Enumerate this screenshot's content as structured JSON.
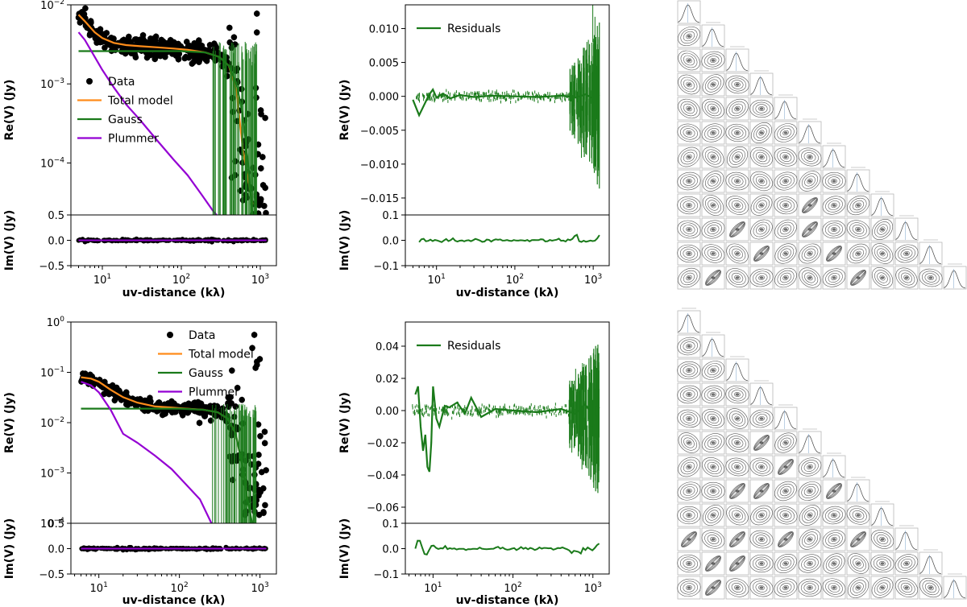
{
  "colors": {
    "data": "#000000",
    "total": "#ff8c1a",
    "gauss": "#1a7a1a",
    "plummer": "#9400d3",
    "residual": "#1a7a1a",
    "corner_line": "#b8b8b8",
    "corner_contour": "#555555"
  },
  "chart_data": [
    {
      "type": "line",
      "panel": "top-left",
      "ylabel": "Re(V) (Jy)",
      "ylabel_im": "Im(V) (Jy)",
      "xlabel": "uv-distance (kλ)",
      "xscale": "log",
      "yscale": "log",
      "xlim": [
        4,
        1600
      ],
      "ylim": [
        2.2e-05,
        0.01
      ],
      "yticks": [
        "10^-2",
        "10^-3",
        "10^-4"
      ],
      "xticks": [
        "10^1",
        "10^2",
        "10^3"
      ],
      "im_ylim": [
        -0.5,
        0.5
      ],
      "im_yticks": [
        "0.5",
        "0.0",
        "-0.5"
      ],
      "legend": [
        "Data",
        "Total model",
        "Gauss",
        "Plummer"
      ],
      "legend_position": "lower-left",
      "series": [
        {
          "name": "Total model",
          "x": [
            5,
            6,
            8,
            10,
            14,
            20,
            30,
            50,
            80,
            120,
            200,
            300,
            400,
            500,
            600,
            800
          ],
          "y": [
            0.0075,
            0.0062,
            0.0045,
            0.0038,
            0.0033,
            0.0031,
            0.003,
            0.0029,
            0.0028,
            0.0027,
            0.0025,
            0.0022,
            0.0017,
            0.0008,
            0.00015,
            3e-05
          ]
        },
        {
          "name": "Gauss",
          "x": [
            5,
            50,
            100,
            200,
            300,
            400,
            500,
            600,
            700,
            800
          ],
          "y": [
            0.0026,
            0.0026,
            0.0026,
            0.0025,
            0.0022,
            0.0017,
            0.001,
            0.0004,
            0.0001,
            2e-05
          ]
        },
        {
          "name": "Plummer",
          "x": [
            5,
            6,
            8,
            10,
            14,
            20,
            30,
            50,
            80,
            120,
            180,
            250,
            280
          ],
          "y": [
            0.0045,
            0.0036,
            0.0022,
            0.0015,
            0.0009,
            0.00055,
            0.00035,
            0.00019,
            0.00011,
            7e-05,
            4e-05,
            2.5e-05,
            2.2e-05
          ]
        }
      ]
    },
    {
      "type": "line",
      "panel": "top-middle",
      "ylabel": "Re(V) (Jy)",
      "ylabel_im": "Im(V) (Jy)",
      "xlabel": "uv-distance (kλ)",
      "xscale": "log",
      "xlim": [
        4,
        1600
      ],
      "ylim": [
        -0.0175,
        0.0135
      ],
      "yticks": [
        "0.010",
        "0.005",
        "0.000",
        "-0.005",
        "-0.010",
        "-0.015"
      ],
      "xticks": [
        "10^1",
        "10^2",
        "10^3"
      ],
      "im_ylim": [
        -0.1,
        0.1
      ],
      "im_yticks": [
        "0.1",
        "0.0",
        "-0.1"
      ],
      "legend": [
        "Residuals"
      ],
      "legend_position": "top-left",
      "series": [
        {
          "name": "Residuals",
          "x": [
            5,
            6,
            7,
            8,
            9,
            10,
            12,
            15,
            20,
            30,
            50,
            100,
            200,
            400,
            600,
            800,
            1000,
            1200
          ],
          "y": [
            -0.0005,
            -0.0028,
            -0.0012,
            0.0002,
            0.001,
            -0.0002,
            0.0004,
            -0.0003,
            0.0002,
            -0.0001,
            0.0001,
            0.0,
            -0.0001,
            0.0001,
            -0.0002,
            0.0003,
            -0.0004,
            0.0002
          ]
        }
      ]
    },
    {
      "type": "line",
      "panel": "bottom-left",
      "ylabel": "Re(V) (Jy)",
      "ylabel_im": "Im(V) (Jy)",
      "xlabel": "uv-distance (kλ)",
      "xscale": "log",
      "yscale": "log",
      "xlim": [
        4.5,
        1600
      ],
      "ylim": [
        0.0001,
        1.0
      ],
      "yticks": [
        "10^0",
        "10^-1",
        "10^-2",
        "10^-3",
        "10^-4"
      ],
      "xticks": [
        "10^1",
        "10^2",
        "10^3"
      ],
      "im_ylim": [
        -0.5,
        0.5
      ],
      "im_yticks": [
        "0.5",
        "0.0",
        "-0.5"
      ],
      "legend": [
        "Data",
        "Total model",
        "Gauss",
        "Plummer"
      ],
      "legend_position": "top-right",
      "series": [
        {
          "name": "Total model",
          "x": [
            6,
            8,
            10,
            14,
            20,
            30,
            50,
            80,
            120,
            200,
            300,
            400,
            500,
            600,
            700
          ],
          "y": [
            0.08,
            0.075,
            0.065,
            0.045,
            0.032,
            0.025,
            0.021,
            0.02,
            0.019,
            0.018,
            0.016,
            0.012,
            0.006,
            0.0015,
            0.0003
          ]
        },
        {
          "name": "Gauss",
          "x": [
            6,
            50,
            100,
            200,
            300,
            400,
            500,
            600,
            700,
            800
          ],
          "y": [
            0.019,
            0.019,
            0.019,
            0.018,
            0.016,
            0.012,
            0.006,
            0.0015,
            0.0003,
            0.0001
          ]
        },
        {
          "name": "Plummer",
          "x": [
            6,
            8,
            10,
            14,
            20,
            30,
            50,
            80,
            120,
            180,
            250
          ],
          "y": [
            0.065,
            0.055,
            0.04,
            0.018,
            0.006,
            0.004,
            0.0022,
            0.0012,
            0.0006,
            0.0003,
            0.0001
          ]
        }
      ]
    },
    {
      "type": "line",
      "panel": "bottom-middle",
      "ylabel": "Re(V) (Jy)",
      "ylabel_im": "Im(V) (Jy)",
      "xlabel": "uv-distance (kλ)",
      "xscale": "log",
      "xlim": [
        4.5,
        1600
      ],
      "ylim": [
        -0.07,
        0.055
      ],
      "yticks": [
        "0.04",
        "0.02",
        "0.00",
        "-0.02",
        "-0.04",
        "-0.06"
      ],
      "xticks": [
        "10^1",
        "10^2",
        "10^3"
      ],
      "im_ylim": [
        -0.1,
        0.1
      ],
      "im_yticks": [
        "0.1",
        "0.0",
        "-0.1"
      ],
      "legend": [
        "Residuals"
      ],
      "legend_position": "top-left",
      "series": [
        {
          "name": "Residuals",
          "x": [
            6,
            6.5,
            7,
            7.5,
            8,
            8.5,
            9,
            9.5,
            10,
            11,
            12,
            14,
            16,
            20,
            25,
            30,
            40,
            60,
            100,
            200,
            400,
            600,
            800,
            1000,
            1200
          ],
          "y": [
            0.01,
            0.015,
            -0.01,
            -0.025,
            -0.015,
            -0.035,
            -0.038,
            -0.02,
            0.015,
            -0.005,
            -0.01,
            0.003,
            0.002,
            0.005,
            -0.002,
            0.008,
            -0.004,
            0.001,
            0.0,
            -0.001,
            0.001,
            -0.002,
            0.004,
            -0.003,
            0.002
          ]
        }
      ]
    }
  ],
  "corner_plots": [
    {
      "name": "top-corner",
      "n_params": 12
    },
    {
      "name": "bottom-corner",
      "n_params": 12
    }
  ]
}
